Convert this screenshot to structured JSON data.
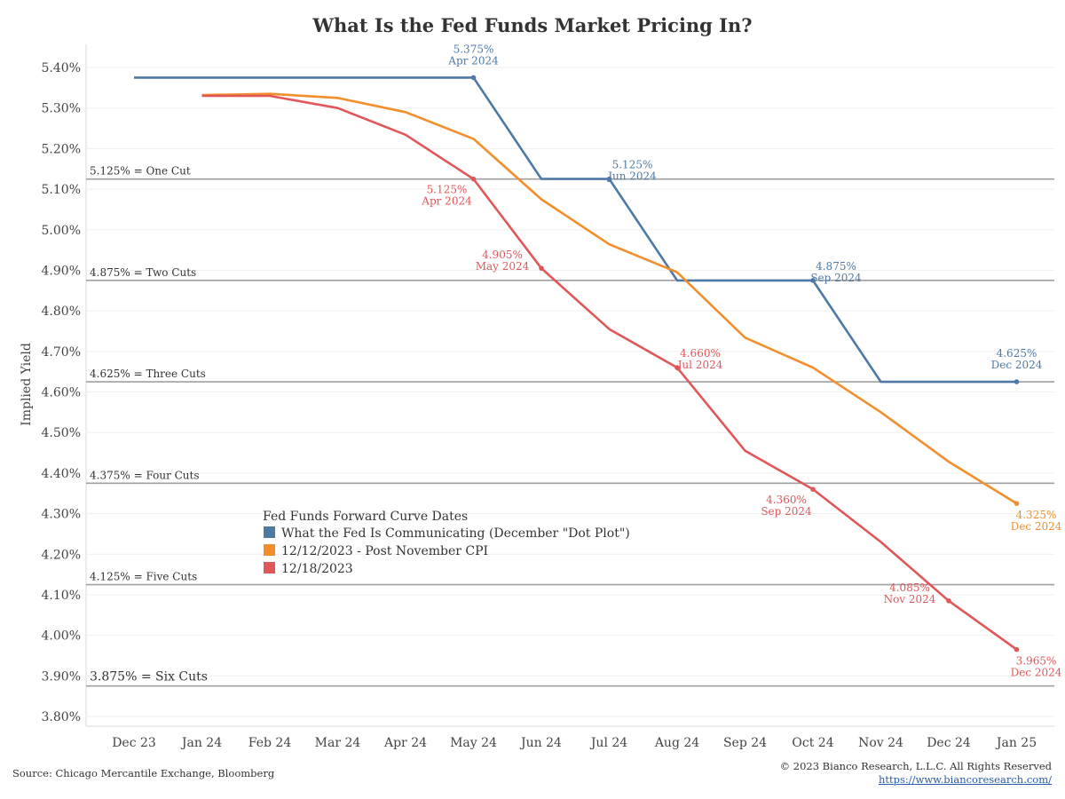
{
  "chart_data": {
    "type": "line",
    "title": "What Is the Fed Funds Market Pricing In?",
    "ylabel": "Implied Yield",
    "xlabel": "",
    "ylim": [
      3.78,
      5.45
    ],
    "x_tick_labels": [
      "Dec 23",
      "Jan 24",
      "Feb 24",
      "Mar 24",
      "Apr 24",
      "May 24",
      "Jun 24",
      "Jul 24",
      "Aug 24",
      "Sep 24",
      "Oct 24",
      "Nov 24",
      "Dec 24",
      "Jan 25"
    ],
    "y_ticks": [
      3.8,
      3.9,
      4.0,
      4.1,
      4.2,
      4.3,
      4.4,
      4.5,
      4.6,
      4.7,
      4.8,
      4.9,
      5.0,
      5.1,
      5.2,
      5.3,
      5.4
    ],
    "y_tick_labels": [
      "3.80%",
      "3.90%",
      "4.00%",
      "4.10%",
      "4.20%",
      "4.30%",
      "4.40%",
      "4.50%",
      "4.60%",
      "4.70%",
      "4.80%",
      "4.90%",
      "5.00%",
      "5.10%",
      "5.20%",
      "5.30%",
      "5.40%"
    ],
    "grid": true,
    "reference_lines": [
      {
        "value": 5.125,
        "label": "5.125% = One Cut"
      },
      {
        "value": 4.875,
        "label": "4.875% = Two Cuts"
      },
      {
        "value": 4.625,
        "label": "4.625% = Three Cuts"
      },
      {
        "value": 4.375,
        "label": "4.375% = Four Cuts"
      },
      {
        "value": 4.125,
        "label": "4.125% = Five Cuts"
      },
      {
        "value": 3.875,
        "label": "3.875% = Six Cuts"
      }
    ],
    "legend_title": "Fed Funds Forward Curve Dates",
    "legend_position": "lower-left (inside plot)",
    "series": [
      {
        "name": "What the Fed Is Communicating (December \"Dot Plot\")",
        "color": "#4e79a7",
        "points": [
          [
            0,
            5.375
          ],
          [
            5,
            5.375
          ],
          [
            6,
            5.125
          ],
          [
            7,
            5.125
          ],
          [
            8,
            4.875
          ],
          [
            10,
            4.875
          ],
          [
            11,
            4.625
          ],
          [
            13,
            4.625
          ]
        ]
      },
      {
        "name": "12/12/2023 - Post November CPI",
        "color": "#f28e2b",
        "points": [
          [
            1,
            5.332
          ],
          [
            2,
            5.335
          ],
          [
            3,
            5.325
          ],
          [
            4,
            5.29
          ],
          [
            5,
            5.224
          ],
          [
            6,
            5.075
          ],
          [
            7,
            4.964
          ],
          [
            8,
            4.895
          ],
          [
            9,
            4.734
          ],
          [
            10,
            4.66
          ],
          [
            11,
            4.55
          ],
          [
            12,
            4.428
          ],
          [
            13,
            4.325
          ]
        ]
      },
      {
        "name": "12/18/2023",
        "color": "#e15759",
        "points": [
          [
            1,
            5.33
          ],
          [
            2,
            5.33
          ],
          [
            3,
            5.3
          ],
          [
            4,
            5.234
          ],
          [
            5,
            5.125
          ],
          [
            6,
            4.905
          ],
          [
            7,
            4.755
          ],
          [
            8,
            4.66
          ],
          [
            9,
            4.455
          ],
          [
            10,
            4.36
          ],
          [
            11,
            4.23
          ],
          [
            12,
            4.085
          ],
          [
            13,
            3.965
          ]
        ]
      }
    ],
    "annotations": [
      {
        "series": 0,
        "x": 5,
        "y": 5.375,
        "value": "5.375%",
        "date": "Apr 2024",
        "pos": "above"
      },
      {
        "series": 0,
        "x": 7,
        "y": 5.125,
        "value": "5.125%",
        "date": "Jun 2024",
        "pos": "above-right"
      },
      {
        "series": 0,
        "x": 10,
        "y": 4.875,
        "value": "4.875%",
        "date": "Sep 2024",
        "pos": "above-right"
      },
      {
        "series": 0,
        "x": 13,
        "y": 4.625,
        "value": "4.625%",
        "date": "Dec 2024",
        "pos": "above"
      },
      {
        "series": 2,
        "x": 5,
        "y": 5.125,
        "value": "5.125%",
        "date": "Apr 2024",
        "pos": "below-left"
      },
      {
        "series": 2,
        "x": 6,
        "y": 4.905,
        "value": "4.905%",
        "date": "May 2024",
        "pos": "left"
      },
      {
        "series": 2,
        "x": 8,
        "y": 4.66,
        "value": "4.660%",
        "date": "Jul 2024",
        "pos": "above-right"
      },
      {
        "series": 2,
        "x": 10,
        "y": 4.36,
        "value": "4.360%",
        "date": "Sep 2024",
        "pos": "below-left"
      },
      {
        "series": 2,
        "x": 12,
        "y": 4.085,
        "value": "4.085%",
        "date": "Nov 2024",
        "pos": "left"
      },
      {
        "series": 2,
        "x": 13,
        "y": 3.965,
        "value": "3.965%",
        "date": "Dec 2024",
        "pos": "below-right"
      },
      {
        "series": 1,
        "x": 13,
        "y": 4.325,
        "value": "4.325%",
        "date": "Dec 2024",
        "pos": "below-right"
      }
    ]
  },
  "footer": {
    "source": "Source: Chicago Mercantile Exchange, Bloomberg",
    "copyright": "© 2023 Bianco Research, L.L.C. All Rights Reserved",
    "url": "https://www.biancoresearch.com/"
  }
}
